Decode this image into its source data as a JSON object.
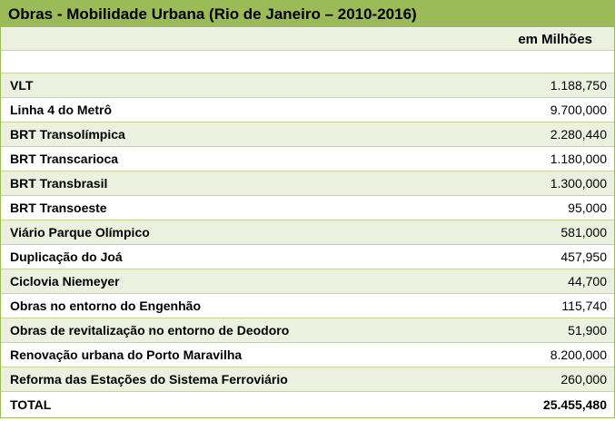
{
  "title": "Obras - Mobilidade Urbana (Rio de Janeiro – 2010-2016)",
  "unit": "em Milhões",
  "table": {
    "rows": [
      [
        "VLT",
        "1.188,750"
      ],
      [
        "Linha 4 do Metrô",
        "9.700,000"
      ],
      [
        "BRT Transolímpica",
        "2.280,440"
      ],
      [
        "BRT Transcarioca",
        "1.180,000"
      ],
      [
        "BRT Transbrasil",
        "1.300,000"
      ],
      [
        "BRT Transoeste",
        "95,000"
      ],
      [
        "Viário Parque Olímpico",
        "581,000"
      ],
      [
        "Duplicação do Joá",
        "457,950"
      ],
      [
        "Ciclovia Niemeyer",
        "44,700"
      ],
      [
        "Obras no entorno do Engenhão",
        "115,740"
      ],
      [
        "Obras de revitalização no entorno de Deodoro",
        "51,900"
      ],
      [
        "Renovação urbana do Porto Maravilha",
        "8.200,000"
      ],
      [
        "Reforma das Estações do Sistema Ferroviário",
        "260,000"
      ]
    ],
    "total": [
      "TOTAL",
      "25.455,480"
    ]
  }
}
